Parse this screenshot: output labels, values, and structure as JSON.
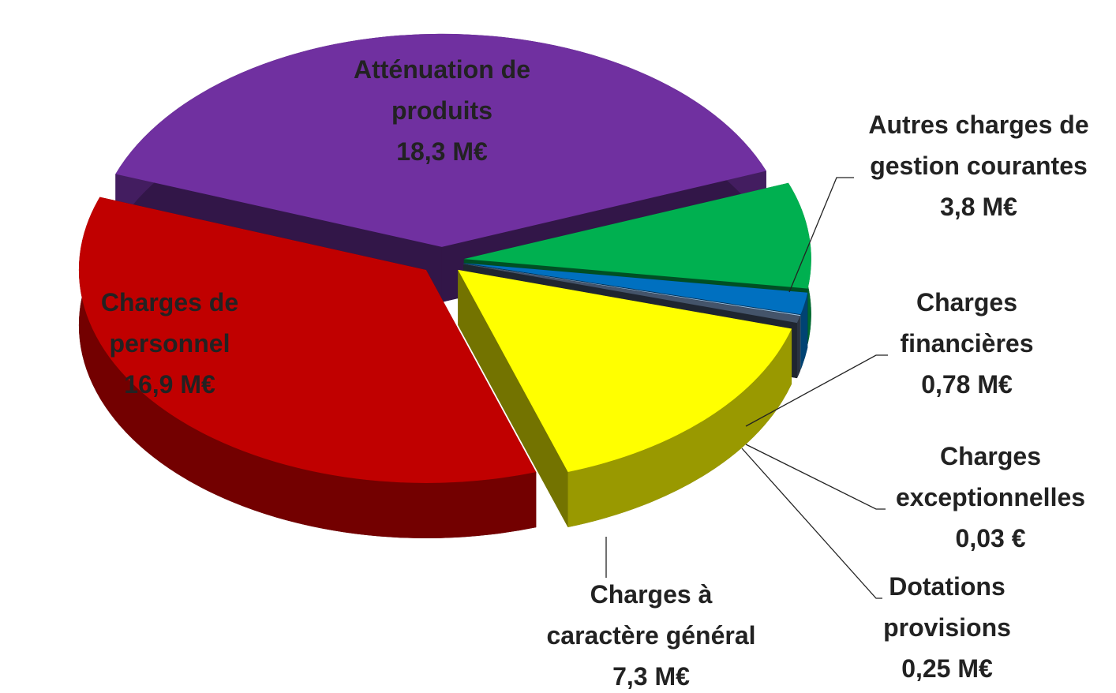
{
  "chart_data": {
    "type": "pie",
    "categories": [
      "Atténuation de produits",
      "Autres charges de gestion courantes",
      "Charges financières",
      "Charges exceptionnelles",
      "Dotations provisions",
      "Charges à caractère général",
      "Charges de personnel"
    ],
    "values": [
      18.3,
      3.8,
      0.78,
      0.03,
      0.25,
      7.3,
      16.9
    ],
    "value_labels": [
      "18,3 M€",
      "3,8 M€",
      "0,78 M€",
      "0,03 €",
      "0,25 M€",
      "7,3 M€",
      "16,9 M€"
    ],
    "colors": [
      "#7030a0",
      "#00b050",
      "#0070c0",
      "#9dc3e6",
      "#44546a",
      "#ffff00",
      "#c00000"
    ]
  }
}
